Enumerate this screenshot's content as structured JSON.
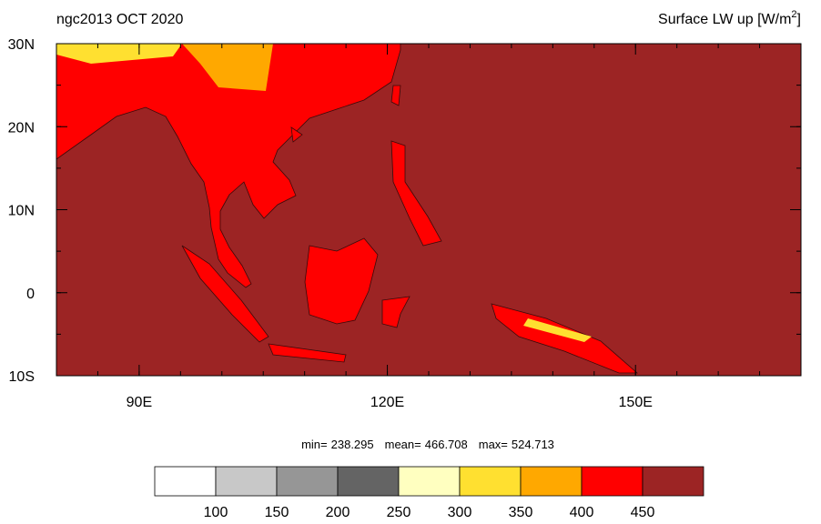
{
  "header": {
    "left_title": "ngc2013 OCT 2020",
    "right_title": "Surface LW up [W/m",
    "right_title_sup": "2",
    "right_title_end": "]"
  },
  "map": {
    "xlim": [
      80,
      170
    ],
    "ylim": [
      -10,
      30
    ],
    "xticks": [
      {
        "value": 90,
        "label": "90E"
      },
      {
        "value": 120,
        "label": "120E"
      },
      {
        "value": 150,
        "label": "150E"
      }
    ],
    "yticks": [
      {
        "value": 30,
        "label": "30N"
      },
      {
        "value": 20,
        "label": "20N"
      },
      {
        "value": 10,
        "label": "10N"
      },
      0,
      {
        "value": -10,
        "label": "10S"
      }
    ],
    "ocean_color": "#9c2424",
    "land_color": "#ff0000",
    "highland_color": "#ffa800",
    "peak_color": "#ffe030"
  },
  "stats": {
    "min_label": "min=",
    "min": 238.295,
    "mean_label": "mean=",
    "mean": 466.708,
    "max_label": "max=",
    "max": 524.713
  },
  "colorbar": {
    "levels": [
      100,
      150,
      200,
      250,
      300,
      350,
      400,
      450
    ],
    "colors": [
      "#ffffff",
      "#c8c8c8",
      "#969696",
      "#646464",
      "#ffffc0",
      "#ffe030",
      "#ffa800",
      "#ff0000",
      "#9c2424"
    ]
  }
}
